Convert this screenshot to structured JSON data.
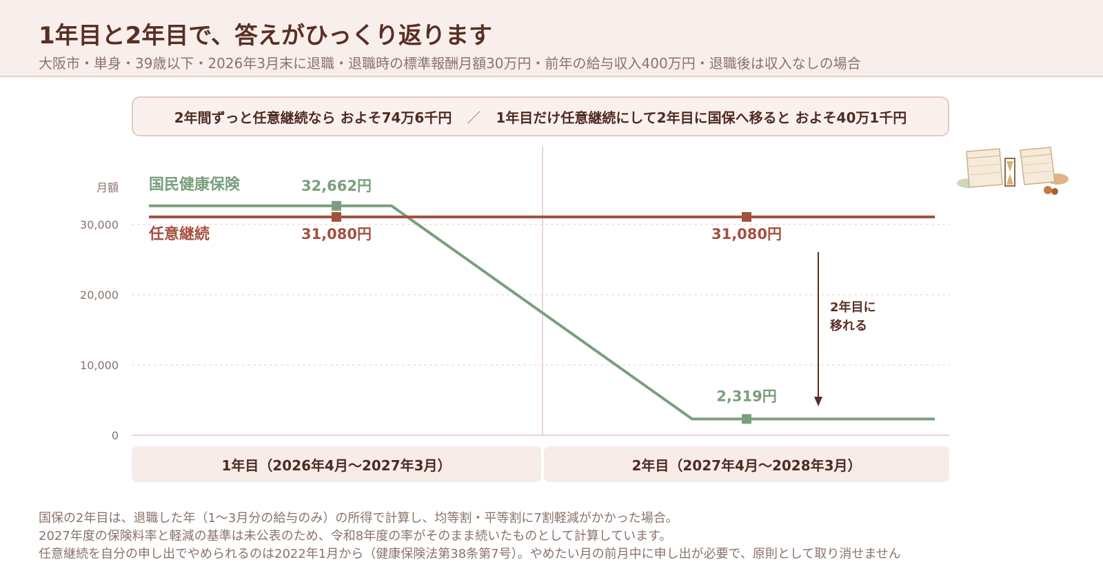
{
  "header": {
    "title": "1年目と2年目で、答えがひっくり返ります",
    "subtitle": "大阪市・単身・39歳以下・2026年3月末に退職・退職時の標準報酬月額30万円・前年の給与収入400万円・退職後は収入なしの場合"
  },
  "summary": {
    "left": "2年間ずっと任意継続なら およそ74万6千円",
    "separator": "／",
    "right": "1年目だけ任意継続にして2年目に国保へ移ると およそ40万1千円"
  },
  "chart_data": {
    "type": "line",
    "ylabel": "月額",
    "ylim": [
      0,
      40000
    ],
    "yticks": [
      0,
      10000,
      20000,
      30000
    ],
    "ytick_labels": [
      "0",
      "10,000",
      "20,000",
      "30,000"
    ],
    "categories": [
      "1年目（2026年4月〜2027年3月）",
      "2年目（2027年4月〜2028年3月）"
    ],
    "series": [
      {
        "name": "国民健康保険",
        "color": "#7a9e7e",
        "values": [
          32662,
          2319
        ],
        "value_labels": [
          "32,662円",
          "2,319円"
        ]
      },
      {
        "name": "任意継続",
        "color": "#a4503f",
        "values": [
          31080,
          31080
        ],
        "value_labels": [
          "31,080円",
          "31,080円"
        ]
      }
    ],
    "annotation": {
      "text_line1": "2年目に",
      "text_line2": "移れる"
    },
    "grid": true
  },
  "footnotes": [
    "国保の2年目は、退職した年（1〜3月分の給与のみ）の所得で計算し、均等割・平等割に7割軽減がかかった場合。",
    "2027年度の保険料率と軽減の基準は未公表のため、令和8年度の率がそのまま続いたものとして計算しています。",
    "任意継続を自分の申し出でやめられるのは2022年1月から（健康保険法第38条第7号）。やめたい月の前月中に申し出が必要で、原則として取り消せません"
  ],
  "decoration": {
    "icon": "calendar-hourglass-icon"
  }
}
